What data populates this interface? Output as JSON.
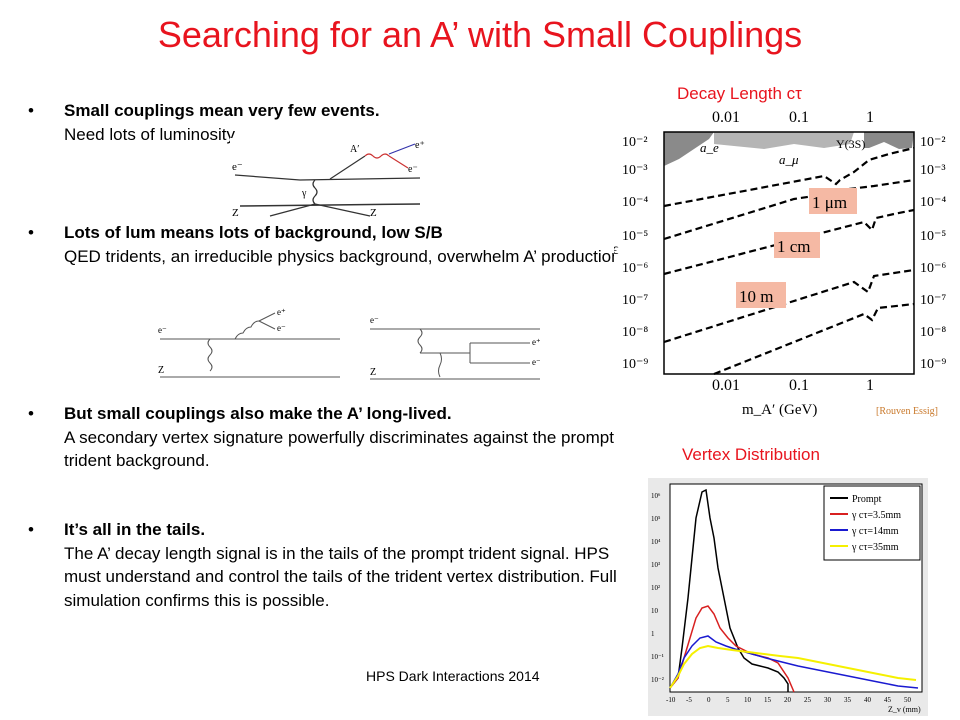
{
  "slide": {
    "title": "Searching for an A’ with Small Couplings",
    "footer": "HPS Dark Interactions 2014",
    "bullet_char": "•"
  },
  "bullets": [
    {
      "head": "Small couplings mean very few events.",
      "body": "Need lots of luminosity."
    },
    {
      "head": "Lots of lum means lots of background, low S/B",
      "body": "QED tridents, an irreducible physics background, overwhelm A’ production."
    },
    {
      "head": "But small couplings also make the A’ long-lived.",
      "body": "A secondary vertex signature powerfully discriminates against the prompt trident background."
    },
    {
      "head": "It’s all in the tails.",
      "body": "The A’ decay length signal is in the tails of the prompt trident signal.  HPS must understand and control the tails of the trident vertex distribution. Full simulation confirms this is possible."
    }
  ],
  "diagrams": {
    "signal": {
      "e_in": "e⁻",
      "z_in": "Z",
      "z_out": "Z",
      "aprime": "A′",
      "e_plus": "e⁺",
      "e_minus": "e⁻",
      "gamma": "γ"
    },
    "trident_left": {
      "e_in": "e⁻",
      "z": "Z",
      "e_plus": "e⁺",
      "e_minus": "e⁻"
    },
    "trident_right": {
      "e_in": "e⁻",
      "z": "Z",
      "e_plus": "e⁺",
      "e_minus": "e⁻"
    }
  },
  "decay_plot": {
    "label": "Decay Length cτ",
    "top_ticks": [
      "0.01",
      "0.1",
      "1"
    ],
    "bottom_ticks": [
      "0.01",
      "0.1",
      "1"
    ],
    "y_ticks": [
      "10⁻²",
      "10⁻³",
      "10⁻⁴",
      "10⁻⁵",
      "10⁻⁶",
      "10⁻⁷",
      "10⁻⁸",
      "10⁻⁹"
    ],
    "ylabel": "ϵ",
    "xlabel": "m_A′ (GeV)",
    "region_labels": [
      "a_e",
      "a_μ",
      "Υ(3S)"
    ],
    "curve_labels": [
      "1 μm",
      "1 cm",
      "10 m"
    ],
    "credit": "[Rouven Essig]"
  },
  "vertex_plot": {
    "label": "Vertex Distribution",
    "legend": [
      "Prompt",
      "γ cτ=3.5mm",
      "γ cτ=14mm",
      "γ cτ=35mm"
    ],
    "legend_colors": [
      "#000000",
      "#e02020",
      "#1a1ad0",
      "#f5f000"
    ],
    "y_ticks": [
      "10⁶",
      "10⁵",
      "10⁴",
      "10³",
      "10²",
      "10",
      "1",
      "10⁻¹",
      "10⁻²"
    ],
    "x_ticks": [
      "-10",
      "-5",
      "0",
      "5",
      "10",
      "15",
      "20",
      "25",
      "30",
      "35",
      "40",
      "45",
      "50"
    ],
    "xlabel": "Z_v (mm)"
  }
}
